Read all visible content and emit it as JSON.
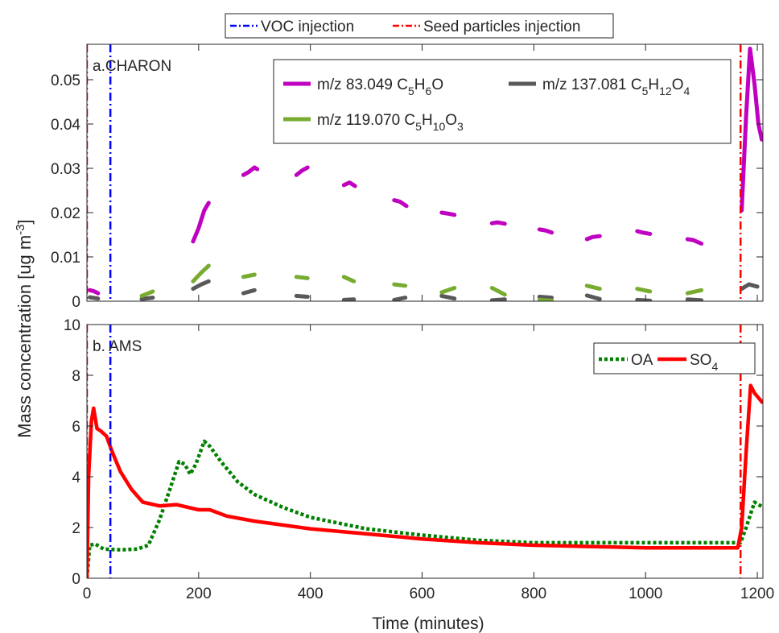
{
  "figure": {
    "ylabel": "Mass concentration [ug m-3]",
    "xlabel": "Time (minutes)",
    "xlim": [
      0,
      1210
    ],
    "xticks": [
      0,
      200,
      400,
      600,
      800,
      1000,
      1200
    ],
    "top_legend": [
      {
        "label": "VOC injection",
        "color": "#0000ff",
        "style": "dashdot"
      },
      {
        "label": "Seed particles injection",
        "color": "#ff0000",
        "style": "dashdot"
      }
    ],
    "events": [
      {
        "name": "seed",
        "x": 0,
        "color": "#ff0000"
      },
      {
        "name": "voc",
        "x": 42,
        "color": "#0000ff"
      },
      {
        "name": "seed",
        "x": 1170,
        "color": "#ff0000"
      }
    ]
  },
  "chart_data": [
    {
      "type": "line",
      "panel_label": "a.CHARON",
      "ylim": [
        0,
        0.058
      ],
      "yticks": [
        0,
        0.01,
        0.02,
        0.03,
        0.04,
        0.05
      ],
      "legend_position": "top-right",
      "series": [
        {
          "name": "m/z 83.049 C5H6O",
          "formula_main": "m/z 83.049 C",
          "formula_parts": [
            [
              "5",
              "H"
            ],
            [
              "6",
              "O"
            ]
          ],
          "color": "#c000c0",
          "segments": [
            [
              [
                5,
                0.0025
              ],
              [
                12,
                0.0023
              ],
              [
                20,
                0.0018
              ]
            ],
            [
              [
                190,
                0.0135
              ],
              [
                200,
                0.0165
              ],
              [
                210,
                0.0205
              ],
              [
                218,
                0.0222
              ]
            ],
            [
              [
                280,
                0.0285
              ],
              [
                290,
                0.0292
              ],
              [
                300,
                0.0302
              ],
              [
                305,
                0.0298
              ]
            ],
            [
              [
                375,
                0.0285
              ],
              [
                385,
                0.0295
              ],
              [
                395,
                0.0302
              ]
            ],
            [
              [
                460,
                0.0262
              ],
              [
                470,
                0.0268
              ],
              [
                480,
                0.026
              ]
            ],
            [
              [
                550,
                0.0228
              ],
              [
                560,
                0.0225
              ],
              [
                572,
                0.0215
              ]
            ],
            [
              [
                635,
                0.02
              ],
              [
                645,
                0.0198
              ],
              [
                658,
                0.0195
              ]
            ],
            [
              [
                725,
                0.0176
              ],
              [
                735,
                0.0178
              ],
              [
                748,
                0.0175
              ]
            ],
            [
              [
                810,
                0.0162
              ],
              [
                820,
                0.016
              ],
              [
                832,
                0.0155
              ]
            ],
            [
              [
                895,
                0.014
              ],
              [
                905,
                0.0145
              ],
              [
                918,
                0.0147
              ]
            ],
            [
              [
                985,
                0.0158
              ],
              [
                995,
                0.0155
              ],
              [
                1008,
                0.0152
              ]
            ],
            [
              [
                1075,
                0.014
              ],
              [
                1085,
                0.0138
              ],
              [
                1100,
                0.013
              ]
            ],
            [
              [
                1172,
                0.0205
              ],
              [
                1180,
                0.042
              ],
              [
                1187,
                0.057
              ],
              [
                1195,
                0.049
              ],
              [
                1202,
                0.04
              ],
              [
                1208,
                0.0365
              ]
            ]
          ]
        },
        {
          "name": "m/z 137.081 C5H12O4",
          "formula_main": "m/z 137.081 C",
          "formula_parts": [
            [
              "5",
              "H"
            ],
            [
              "12",
              "O"
            ],
            [
              "4",
              ""
            ]
          ],
          "color": "#595959",
          "segments": [
            [
              [
                5,
                0.0009
              ],
              [
                20,
                0.0006
              ]
            ],
            [
              [
                98,
                0.0005
              ],
              [
                118,
                0.0008
              ]
            ],
            [
              [
                190,
                0.0028
              ],
              [
                205,
                0.0038
              ],
              [
                218,
                0.0045
              ]
            ],
            [
              [
                280,
                0.0018
              ],
              [
                300,
                0.0025
              ]
            ],
            [
              [
                375,
                0.0012
              ],
              [
                395,
                0.001
              ]
            ],
            [
              [
                460,
                0.0003
              ],
              [
                478,
                0.0004
              ]
            ],
            [
              [
                550,
                0.0003
              ],
              [
                570,
                0.0008
              ]
            ],
            [
              [
                635,
                0.0012
              ],
              [
                658,
                0.0006
              ]
            ],
            [
              [
                725,
                0.0002
              ],
              [
                748,
                0.0004
              ]
            ],
            [
              [
                810,
                0.001
              ],
              [
                832,
                0.0008
              ]
            ],
            [
              [
                895,
                0.0013
              ],
              [
                918,
                0.0005
              ]
            ],
            [
              [
                985,
                0.0003
              ],
              [
                1008,
                0.0001
              ]
            ],
            [
              [
                1075,
                0.0004
              ],
              [
                1100,
                0.0002
              ]
            ],
            [
              [
                1172,
                0.0028
              ],
              [
                1185,
                0.0038
              ],
              [
                1200,
                0.0033
              ]
            ]
          ]
        },
        {
          "name": "m/z 119.070 C5H10O3",
          "formula_main": "m/z 119.070 C",
          "formula_parts": [
            [
              "5",
              "H"
            ],
            [
              "10",
              "O"
            ],
            [
              "3",
              ""
            ]
          ],
          "color": "#77ac30",
          "segments": [
            [
              [
                98,
                0.0012
              ],
              [
                118,
                0.0022
              ]
            ],
            [
              [
                190,
                0.0045
              ],
              [
                205,
                0.0065
              ],
              [
                218,
                0.008
              ]
            ],
            [
              [
                280,
                0.0055
              ],
              [
                300,
                0.006
              ]
            ],
            [
              [
                375,
                0.0055
              ],
              [
                395,
                0.0052
              ]
            ],
            [
              [
                460,
                0.0055
              ],
              [
                478,
                0.0045
              ]
            ],
            [
              [
                550,
                0.0038
              ],
              [
                570,
                0.0035
              ]
            ],
            [
              [
                635,
                0.002
              ],
              [
                658,
                0.003
              ]
            ],
            [
              [
                725,
                0.003
              ],
              [
                748,
                0.0015
              ]
            ],
            [
              [
                810,
                0.0003
              ],
              [
                832,
                0.0001
              ]
            ],
            [
              [
                895,
                0.0035
              ],
              [
                918,
                0.0028
              ]
            ],
            [
              [
                985,
                0.0028
              ],
              [
                1008,
                0.0022
              ]
            ],
            [
              [
                1075,
                0.0018
              ],
              [
                1100,
                0.0025
              ]
            ]
          ]
        }
      ]
    },
    {
      "type": "line",
      "panel_label": "b. AMS",
      "ylim": [
        0,
        10
      ],
      "yticks": [
        0,
        2,
        4,
        6,
        8,
        10
      ],
      "legend_position": "top-right",
      "series": [
        {
          "name": "OA",
          "color": "#008000",
          "style": "dotted",
          "points": [
            [
              0,
              0.0
            ],
            [
              5,
              1.3
            ],
            [
              15,
              1.35
            ],
            [
              30,
              1.15
            ],
            [
              60,
              1.12
            ],
            [
              90,
              1.15
            ],
            [
              110,
              1.3
            ],
            [
              130,
              2.3
            ],
            [
              150,
              3.6
            ],
            [
              165,
              4.6
            ],
            [
              175,
              4.5
            ],
            [
              185,
              4.1
            ],
            [
              195,
              4.5
            ],
            [
              210,
              5.4
            ],
            [
              220,
              5.2
            ],
            [
              240,
              4.6
            ],
            [
              270,
              3.8
            ],
            [
              300,
              3.3
            ],
            [
              350,
              2.8
            ],
            [
              400,
              2.4
            ],
            [
              500,
              1.95
            ],
            [
              600,
              1.7
            ],
            [
              700,
              1.5
            ],
            [
              800,
              1.4
            ],
            [
              900,
              1.4
            ],
            [
              1000,
              1.4
            ],
            [
              1100,
              1.4
            ],
            [
              1170,
              1.4
            ],
            [
              1180,
              2.0
            ],
            [
              1195,
              3.0
            ],
            [
              1210,
              2.8
            ]
          ]
        },
        {
          "name": "SO4",
          "name_main": "SO",
          "name_sub": "4",
          "color": "#ff0000",
          "style": "solid",
          "points": [
            [
              0,
              0.0
            ],
            [
              3,
              4.0
            ],
            [
              8,
              6.2
            ],
            [
              12,
              6.7
            ],
            [
              18,
              5.9
            ],
            [
              25,
              5.8
            ],
            [
              35,
              5.6
            ],
            [
              45,
              5.0
            ],
            [
              60,
              4.2
            ],
            [
              80,
              3.5
            ],
            [
              100,
              3.0
            ],
            [
              130,
              2.85
            ],
            [
              160,
              2.9
            ],
            [
              180,
              2.8
            ],
            [
              200,
              2.7
            ],
            [
              220,
              2.7
            ],
            [
              250,
              2.45
            ],
            [
              300,
              2.25
            ],
            [
              400,
              1.95
            ],
            [
              500,
              1.75
            ],
            [
              600,
              1.55
            ],
            [
              700,
              1.4
            ],
            [
              800,
              1.3
            ],
            [
              900,
              1.25
            ],
            [
              1000,
              1.2
            ],
            [
              1100,
              1.2
            ],
            [
              1165,
              1.2
            ],
            [
              1172,
              2.0
            ],
            [
              1180,
              5.0
            ],
            [
              1188,
              7.6
            ],
            [
              1195,
              7.3
            ],
            [
              1210,
              6.9
            ]
          ]
        }
      ]
    }
  ]
}
